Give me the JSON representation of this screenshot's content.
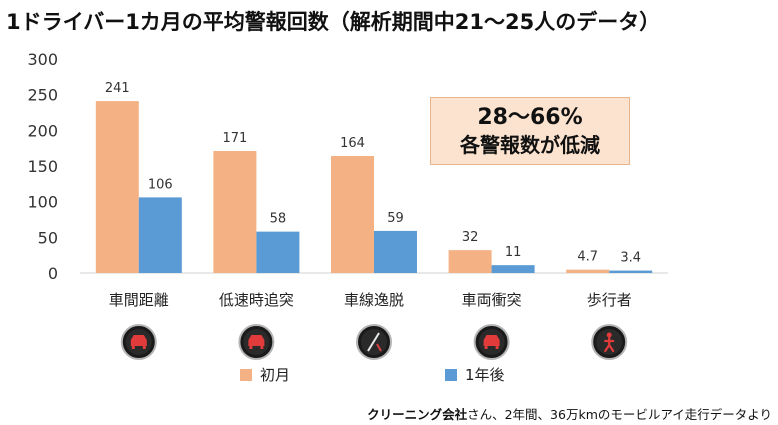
{
  "title": "1ドライバー1カ月の平均警報回数（解析期間中21～25人のデータ）",
  "callout": {
    "line1": "28～66%",
    "line2": "各警報数が低減"
  },
  "note": {
    "company": "クリーニング会社",
    "text": "さん、2年間、36万kmのモービルアイ走行データより"
  },
  "icons": [
    "car-collision-warning-icon",
    "car-collision-warning-icon",
    "lane-departure-warning-icon",
    "car-collision-warning-icon",
    "pedestrian-warning-icon"
  ],
  "chart_data": {
    "type": "bar",
    "categories": [
      "車間距離",
      "低速時追突",
      "車線逸脱",
      "車両衝突",
      "歩行者"
    ],
    "series": [
      {
        "name": "初月",
        "values": [
          241,
          171,
          164,
          32,
          4.7
        ],
        "color": "#f4b183"
      },
      {
        "name": "1年後",
        "values": [
          106,
          58,
          59,
          11,
          3.4
        ],
        "color": "#5b9bd5"
      }
    ],
    "data_labels": [
      [
        "241",
        "171",
        "164",
        "32",
        "4.7"
      ],
      [
        "106",
        "58",
        "59",
        "11",
        "3.4"
      ]
    ],
    "ylim": [
      0,
      300
    ],
    "yticks": [
      "0",
      "50",
      "100",
      "150",
      "200",
      "250",
      "300"
    ],
    "grid": false,
    "legend_position": "bottom"
  }
}
